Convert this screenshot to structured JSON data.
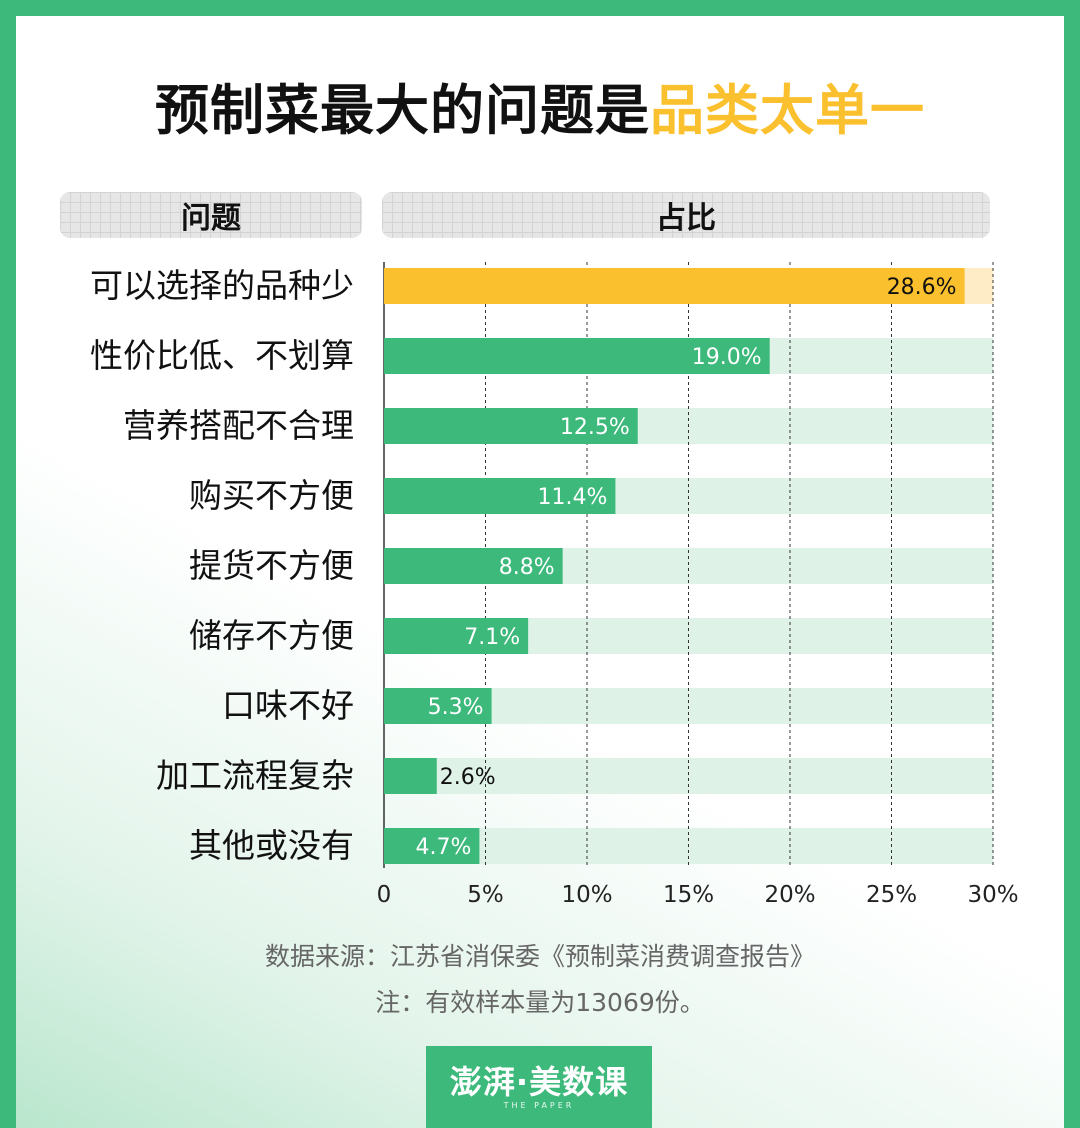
{
  "title": {
    "main": "预制菜最大的问题是",
    "highlight": "品类太单一"
  },
  "headers": {
    "question": "问题",
    "ratio": "占比"
  },
  "colors": {
    "highlight": "#fbc02d",
    "highlight_track": "#fdecc6",
    "bar": "#3dba7b",
    "track": "#dff2e7",
    "frame": "#3dba7b"
  },
  "chart_data": {
    "type": "bar",
    "orientation": "horizontal",
    "categories": [
      "可以选择的品种少",
      "性价比低、不划算",
      "营养搭配不合理",
      "购买不方便",
      "提货不方便",
      "储存不方便",
      "口味不好",
      "加工流程复杂",
      "其他或没有"
    ],
    "values": [
      28.6,
      19.0,
      12.5,
      11.4,
      8.8,
      7.1,
      5.3,
      2.6,
      4.7
    ],
    "value_labels": [
      "28.6%",
      "19.0%",
      "12.5%",
      "11.4%",
      "8.8%",
      "7.1%",
      "5.3%",
      "2.6%",
      "4.7%"
    ],
    "highlight_index": 0,
    "xlim": [
      0,
      30
    ],
    "xticks": [
      0,
      5,
      10,
      15,
      20,
      25,
      30
    ],
    "xtick_labels": [
      "0",
      "5%",
      "10%",
      "15%",
      "20%",
      "25%",
      "30%"
    ],
    "grid": "vertical dashed"
  },
  "footer": {
    "source": "数据来源：江苏省消保委《预制菜消费调查报告》",
    "note": "注：有效样本量为13069份。"
  },
  "logo": {
    "main": "澎湃·美数课",
    "sub": "THE PAPER"
  }
}
